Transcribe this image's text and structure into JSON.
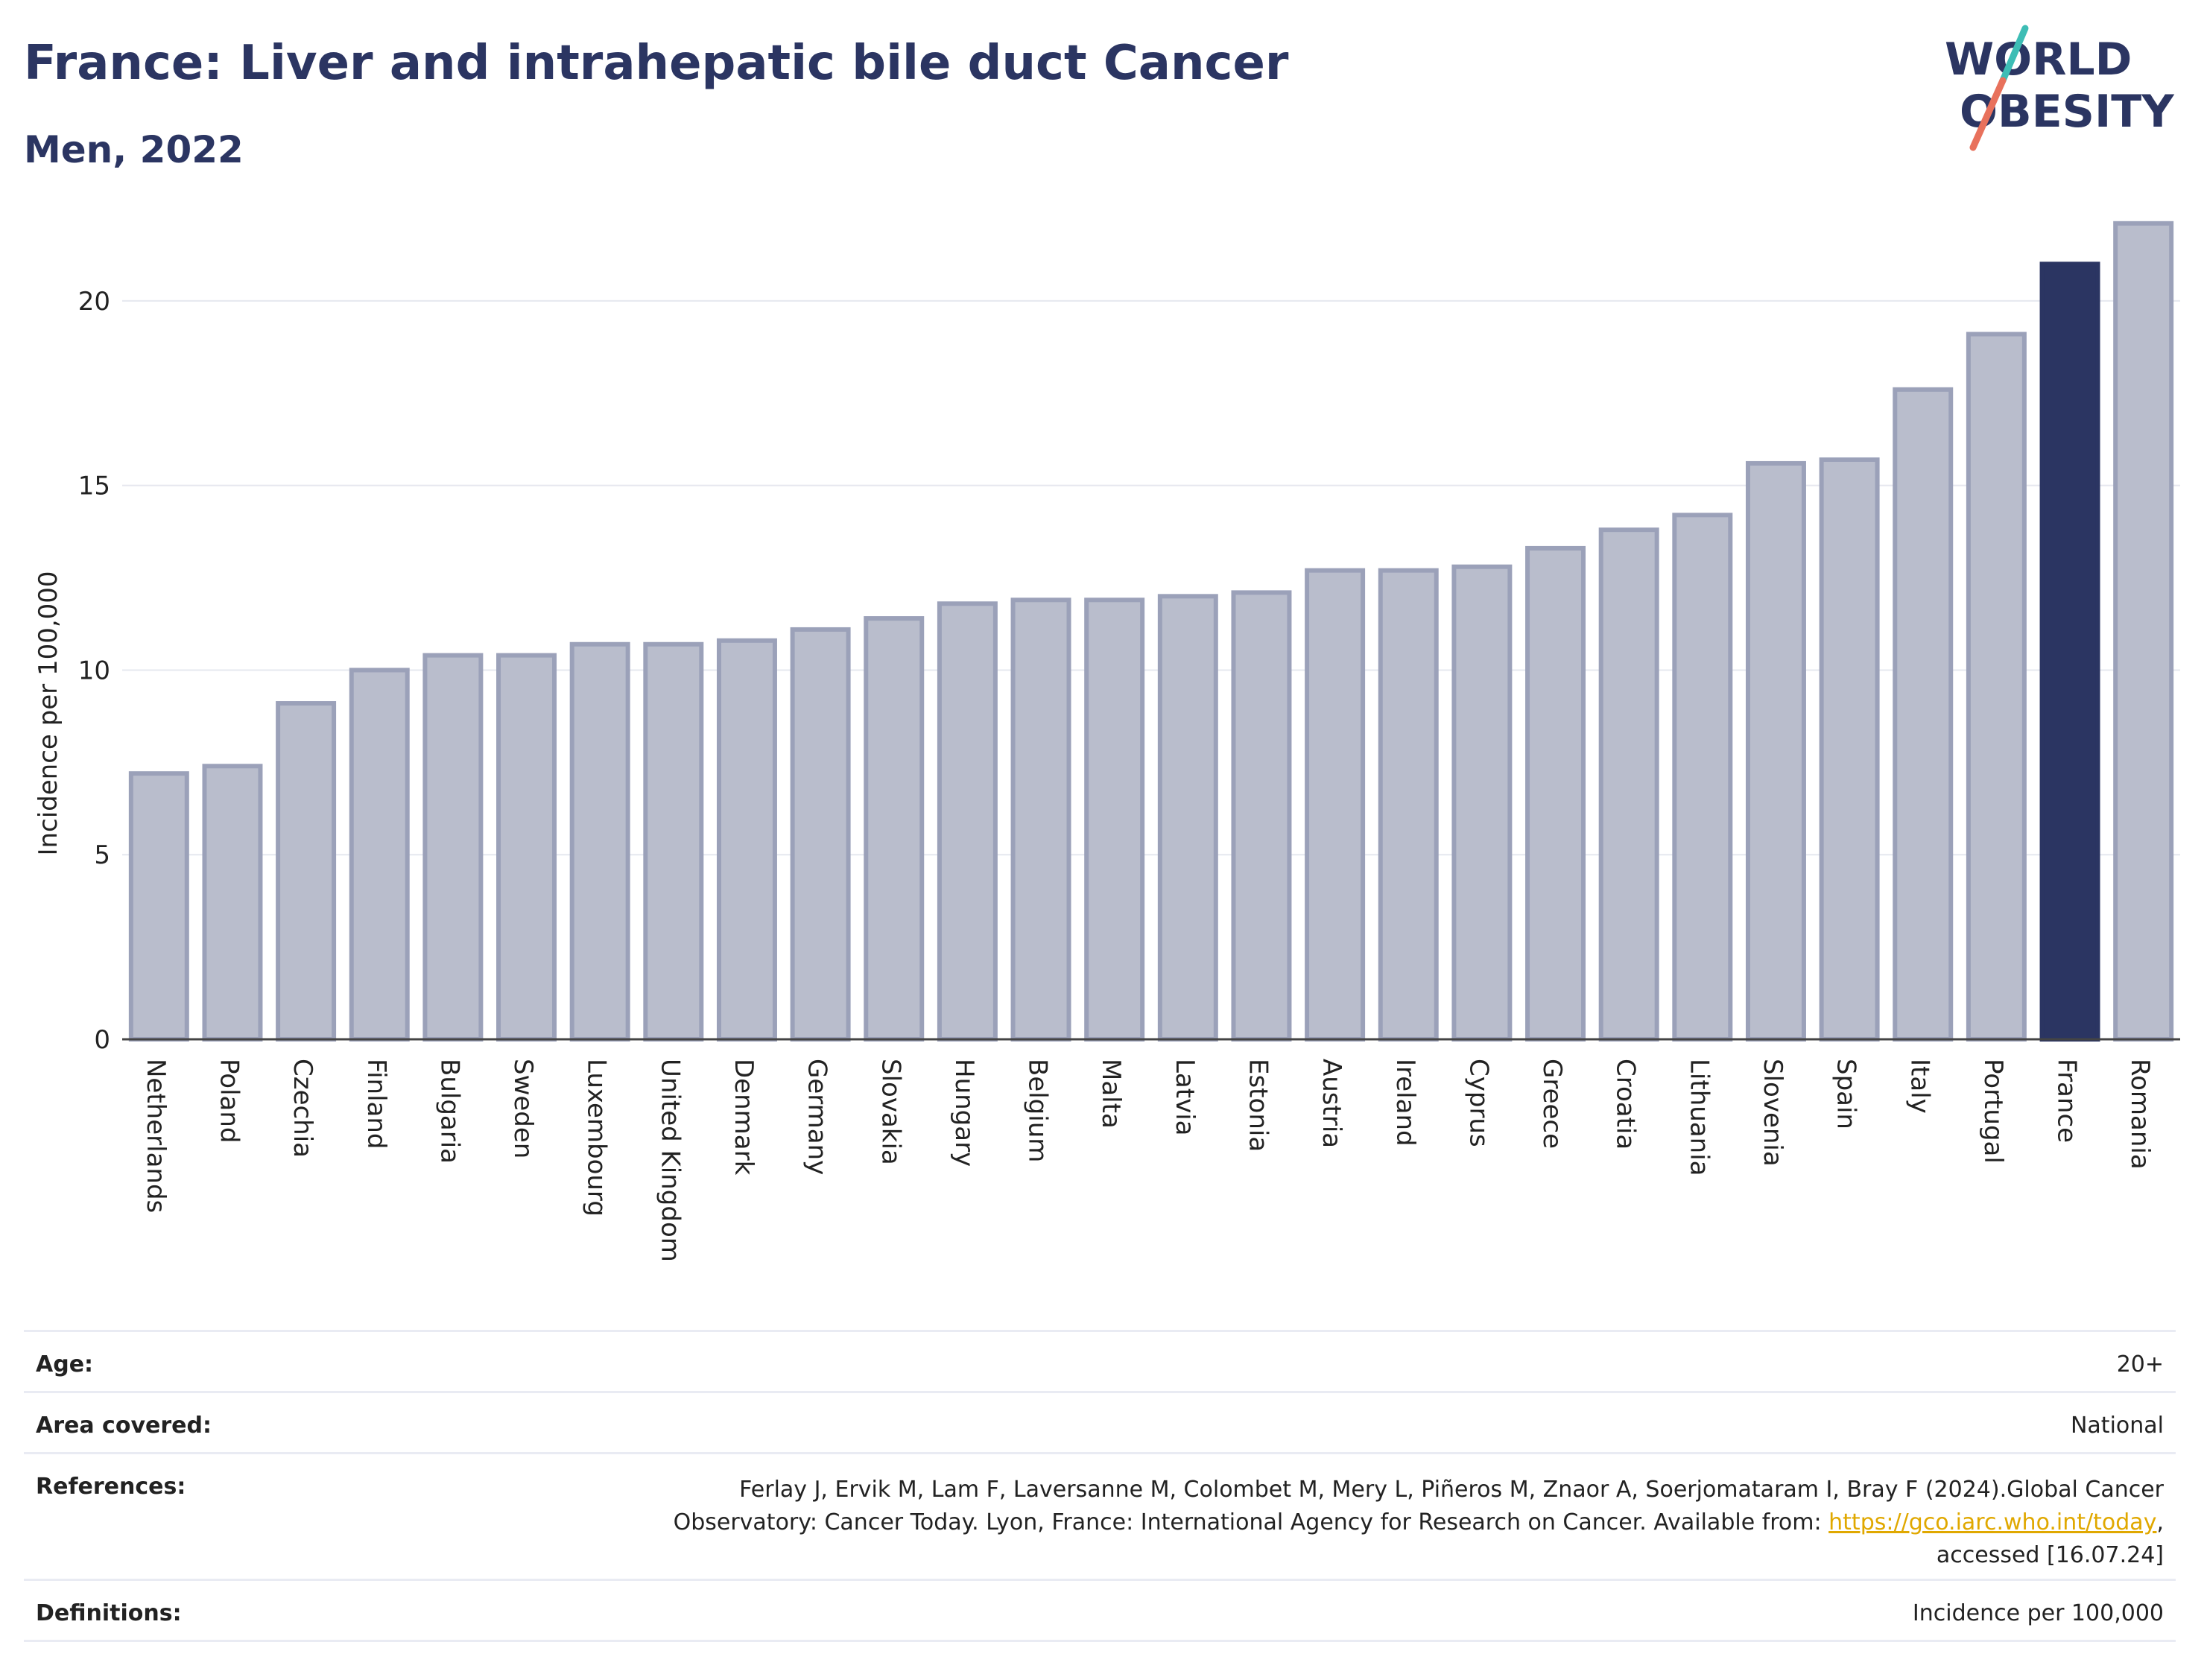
{
  "header": {
    "title": "France: Liver and intrahepatic bile duct Cancer",
    "subtitle": "Men, 2022"
  },
  "logo": {
    "line1": "WORLD",
    "line2": "OBESITY"
  },
  "chart_data": {
    "type": "bar",
    "ylabel": "Incidence per 100,000",
    "xlabel": "",
    "ylim": [
      0,
      22.5
    ],
    "yticks": [
      0,
      5,
      10,
      15,
      20
    ],
    "grid": true,
    "highlight": "France",
    "colors": {
      "bar": "#b9bdcc",
      "bar_border": "#9ba1b9",
      "highlight": "#2b3562"
    },
    "categories": [
      "Netherlands",
      "Poland",
      "Czechia",
      "Finland",
      "Bulgaria",
      "Sweden",
      "Luxembourg",
      "United Kingdom",
      "Denmark",
      "Germany",
      "Slovakia",
      "Hungary",
      "Belgium",
      "Malta",
      "Latvia",
      "Estonia",
      "Austria",
      "Ireland",
      "Cyprus",
      "Greece",
      "Croatia",
      "Lithuania",
      "Slovenia",
      "Spain",
      "Italy",
      "Portugal",
      "France",
      "Romania"
    ],
    "values": [
      7.2,
      7.4,
      9.1,
      10.0,
      10.4,
      10.4,
      10.7,
      10.7,
      10.8,
      11.1,
      11.4,
      11.8,
      11.9,
      11.9,
      12.0,
      12.1,
      12.7,
      12.7,
      12.8,
      13.3,
      13.8,
      14.2,
      15.6,
      15.7,
      17.6,
      19.1,
      21.0,
      22.1
    ]
  },
  "info": {
    "age_label": "Age:",
    "age_value": "20+",
    "area_label": "Area covered:",
    "area_value": "National",
    "references_label": "References:",
    "references_text_1": "Ferlay J, Ervik M, Lam F, Laversanne M, Colombet M, Mery L, Piñeros M, Znaor A, Soerjomataram I, Bray F (2024).Global Cancer Observatory: Cancer Today. Lyon, France: International Agency for Research on Cancer. Available from: ",
    "references_link": "https://gco.iarc.who.int/today",
    "references_text_2": ", accessed [16.07.24]",
    "definitions_label": "Definitions:",
    "definitions_value": "Incidence per 100,000"
  }
}
